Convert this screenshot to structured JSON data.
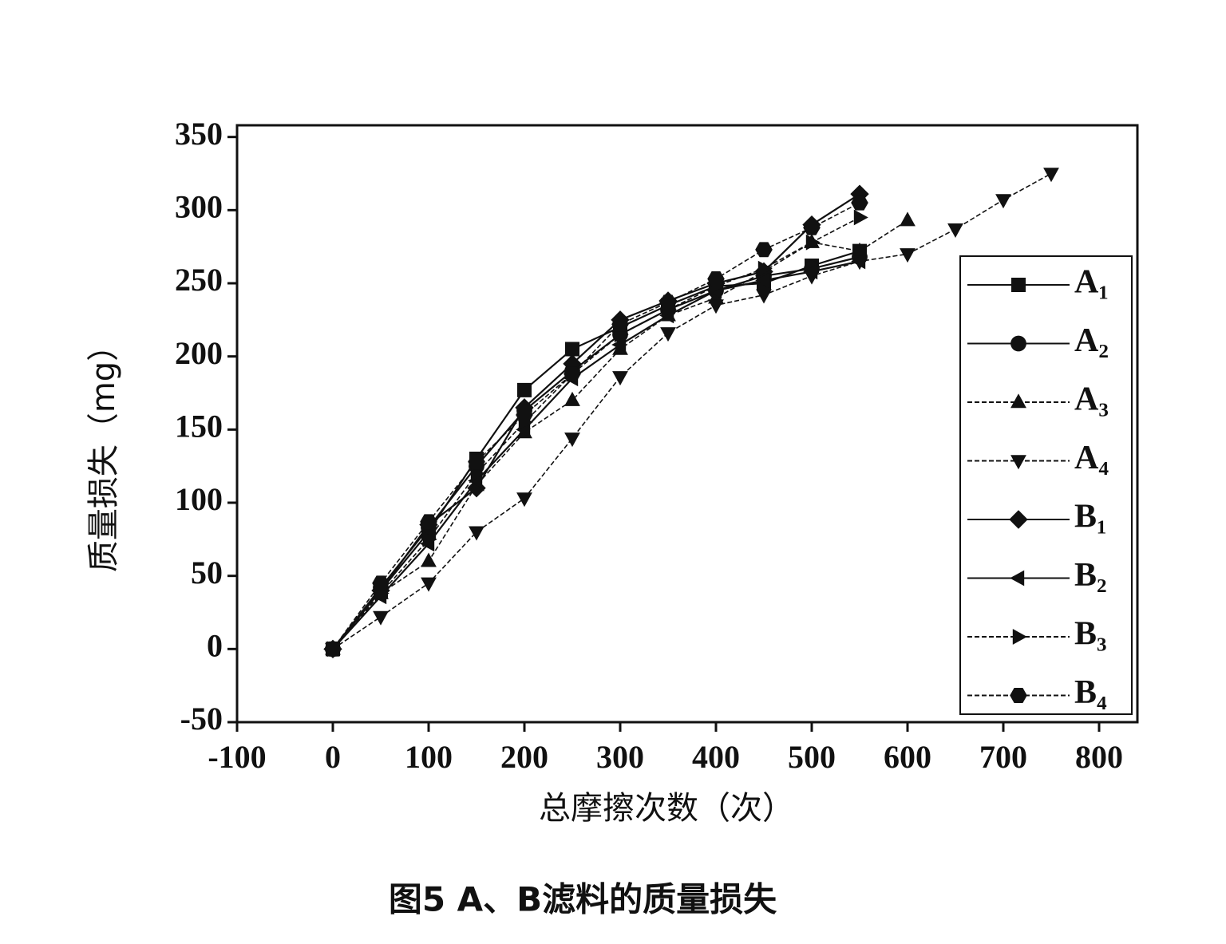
{
  "chart_data": {
    "type": "line",
    "xlabel": "总摩擦次数（次）",
    "ylabel": "质量损失（mg）",
    "caption": "图5 A、B滤料的质量损失",
    "xlim": [
      -100,
      840
    ],
    "ylim": [
      -50,
      358
    ],
    "xticks": [
      -100,
      0,
      100,
      200,
      300,
      400,
      500,
      600,
      700,
      800
    ],
    "yticks": [
      -50,
      0,
      50,
      100,
      150,
      200,
      250,
      300,
      350
    ],
    "legend": "right",
    "series": [
      {
        "name": "A₁",
        "color": "#111",
        "marker": "square",
        "dash": false,
        "x": [
          0,
          50,
          100,
          150,
          200,
          250,
          300,
          350,
          400,
          450,
          500,
          550
        ],
        "values": [
          0,
          40,
          80,
          130,
          177,
          205,
          220,
          235,
          248,
          250,
          262,
          272
        ]
      },
      {
        "name": "A₂",
        "color": "#111",
        "marker": "circle",
        "dash": false,
        "x": [
          0,
          50,
          100,
          150,
          200,
          250,
          300,
          350,
          400,
          450,
          500,
          550
        ],
        "values": [
          0,
          42,
          83,
          125,
          163,
          190,
          215,
          232,
          245,
          255,
          260,
          268
        ]
      },
      {
        "name": "A₃",
        "color": "#111",
        "marker": "up",
        "dash": true,
        "x": [
          0,
          50,
          100,
          150,
          200,
          250,
          300,
          350,
          400,
          450,
          500,
          550,
          600
        ],
        "values": [
          0,
          38,
          60,
          112,
          148,
          170,
          205,
          228,
          240,
          258,
          278,
          272,
          293
        ]
      },
      {
        "name": "A₄",
        "color": "#111",
        "marker": "down",
        "dash": true,
        "x": [
          0,
          50,
          100,
          150,
          200,
          250,
          300,
          350,
          400,
          450,
          500,
          550,
          600,
          650,
          700,
          750
        ],
        "values": [
          0,
          22,
          45,
          80,
          103,
          144,
          186,
          216,
          235,
          242,
          255,
          265,
          270,
          287,
          307,
          325
        ]
      },
      {
        "name": "B₁",
        "color": "#111",
        "marker": "diamond",
        "dash": false,
        "x": [
          0,
          50,
          100,
          150,
          200,
          250,
          300,
          350,
          400,
          450,
          500,
          550
        ],
        "values": [
          0,
          40,
          85,
          110,
          165,
          195,
          225,
          238,
          250,
          258,
          290,
          311
        ]
      },
      {
        "name": "B₂",
        "color": "#111",
        "marker": "left",
        "dash": false,
        "x": [
          0,
          50,
          100,
          150,
          200,
          250,
          300,
          350,
          400,
          450,
          500,
          550
        ],
        "values": [
          0,
          36,
          72,
          115,
          150,
          185,
          208,
          228,
          245,
          252,
          258,
          265
        ]
      },
      {
        "name": "B₃",
        "color": "#111",
        "marker": "right",
        "dash": true,
        "x": [
          0,
          50,
          100,
          150,
          200,
          250,
          300,
          350,
          400,
          450,
          500,
          550
        ],
        "values": [
          0,
          38,
          75,
          120,
          155,
          188,
          215,
          232,
          248,
          260,
          278,
          295
        ]
      },
      {
        "name": "B₄",
        "color": "#111",
        "marker": "hexagon",
        "dash": true,
        "x": [
          0,
          50,
          100,
          150,
          200,
          250,
          300,
          350,
          400,
          450,
          500,
          550
        ],
        "values": [
          0,
          45,
          87,
          128,
          160,
          188,
          222,
          237,
          253,
          273,
          288,
          305
        ]
      }
    ]
  }
}
